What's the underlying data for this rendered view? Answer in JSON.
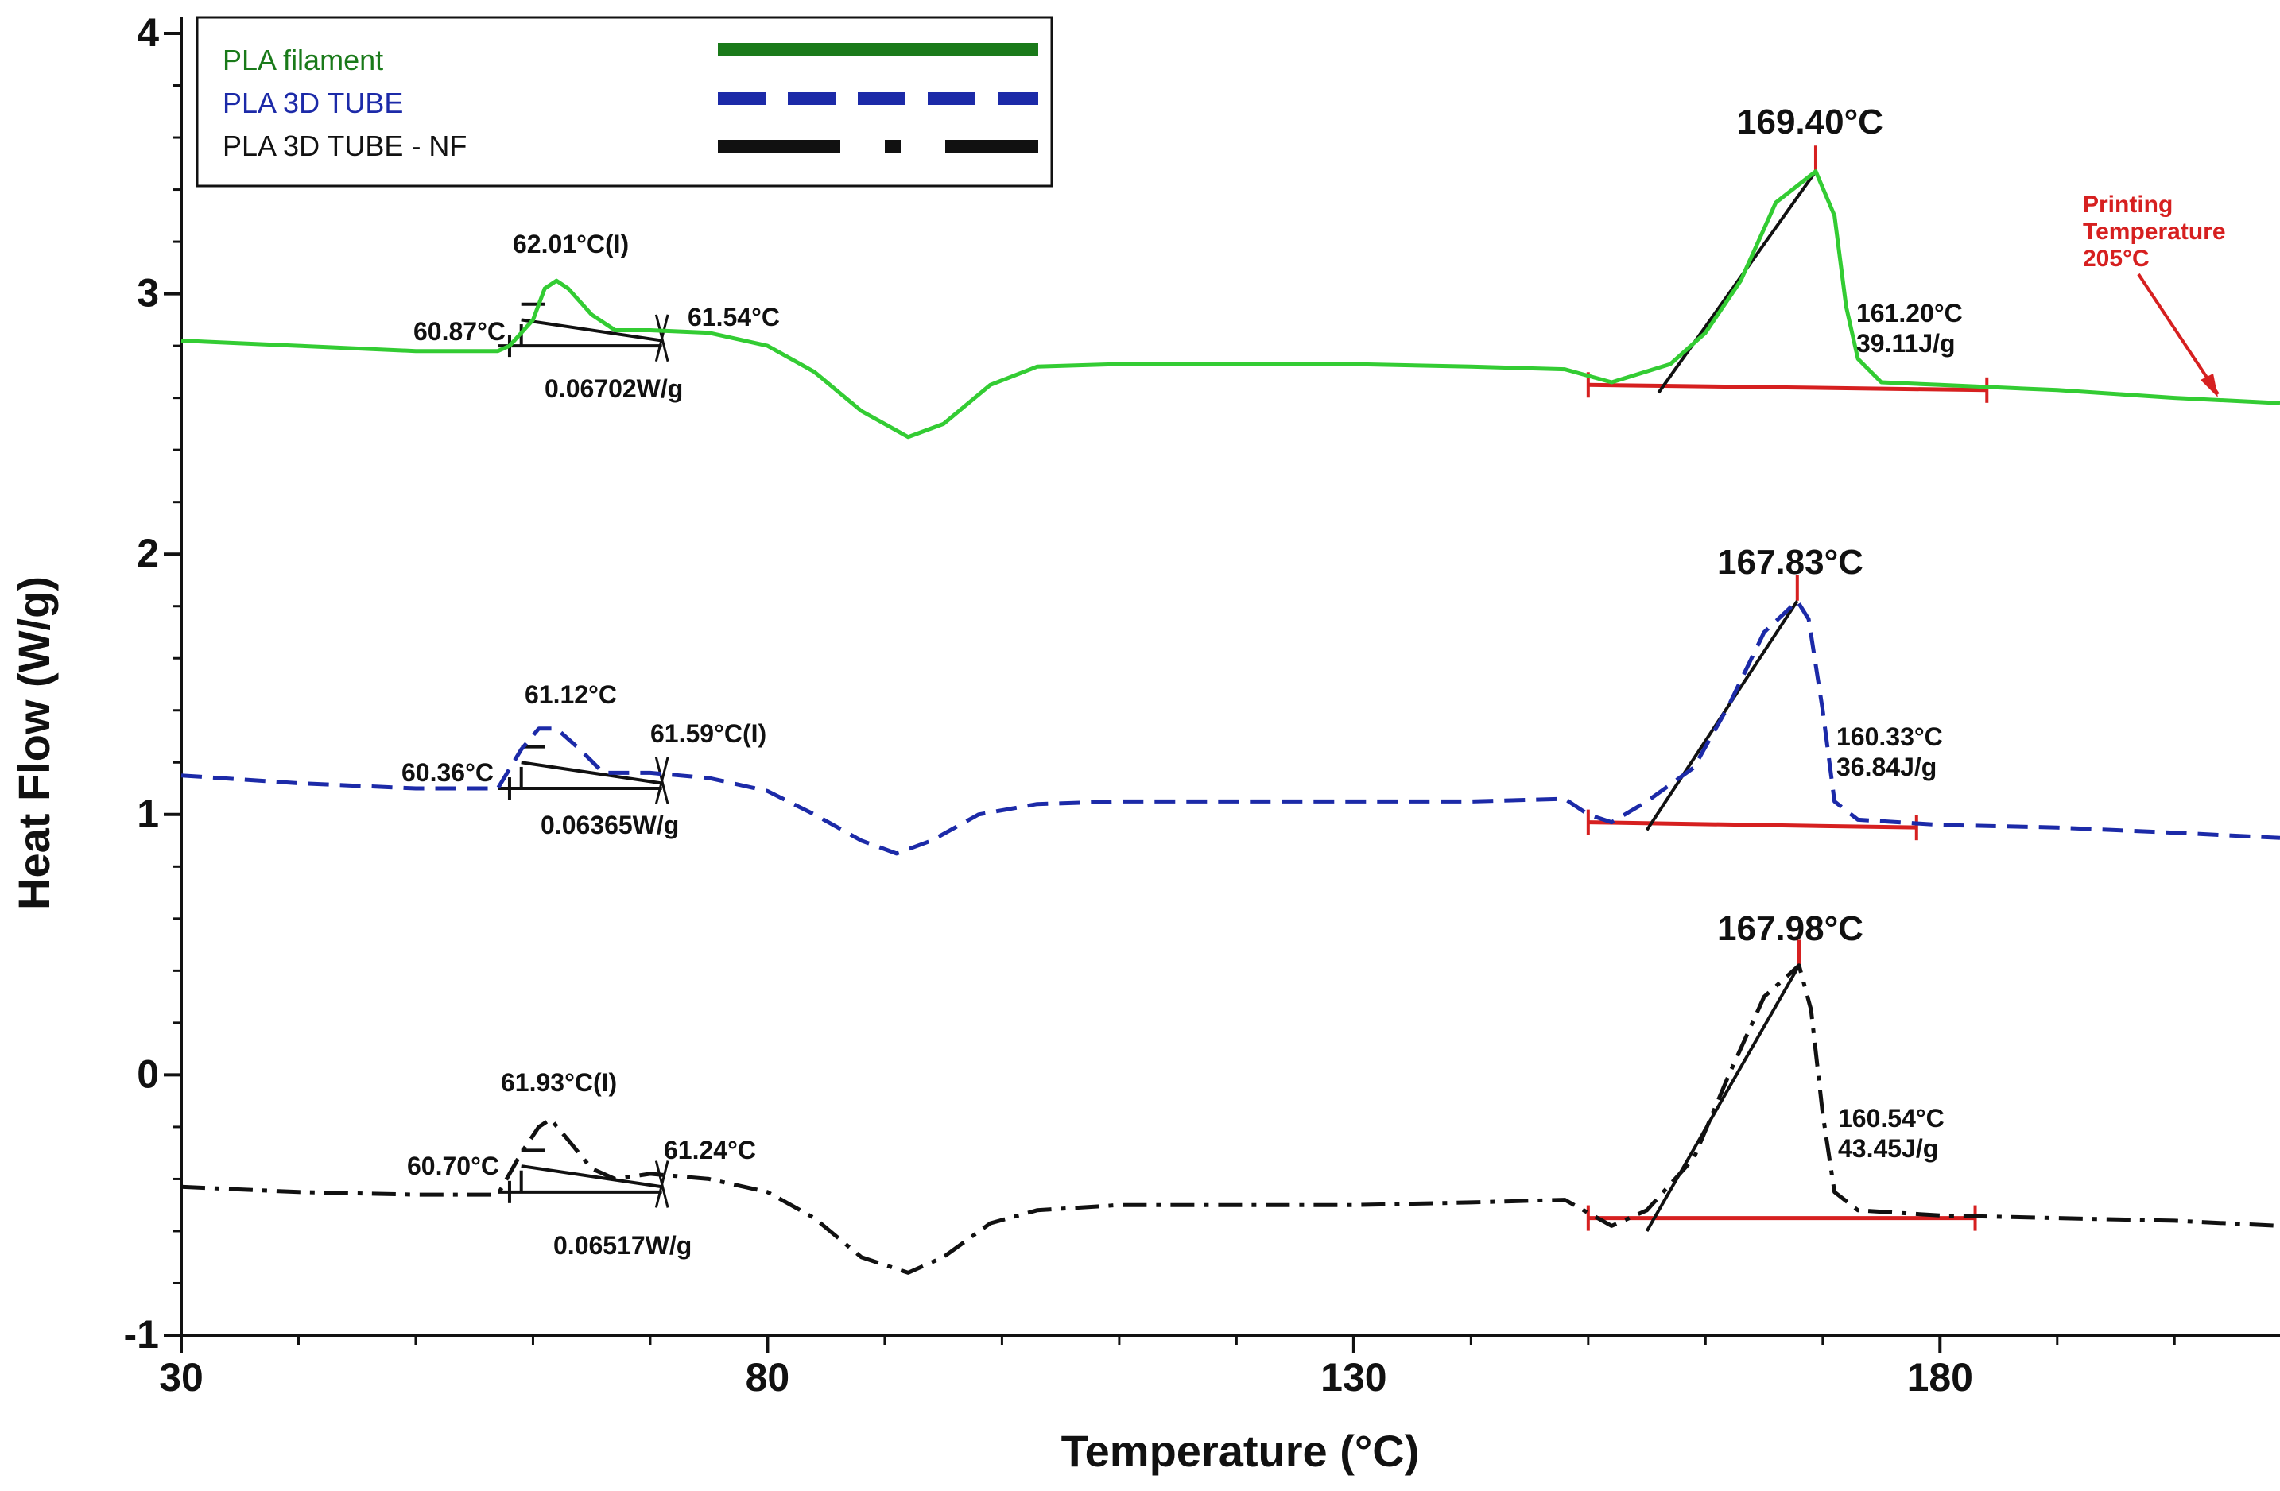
{
  "chart_data": {
    "type": "line",
    "title": "",
    "xlabel": "Temperature (°C)",
    "ylabel": "Heat Flow (W/g)",
    "xlim": [
      30,
      209
    ],
    "ylim": [
      -1,
      4
    ],
    "x_ticks": [
      30,
      80,
      130,
      180
    ],
    "y_ticks": [
      -1,
      0,
      1,
      2,
      3,
      4
    ],
    "legend": {
      "position": "top-left",
      "entries": [
        {
          "label": "PLA filament",
          "color": "#1a7a1a",
          "style": "solid"
        },
        {
          "label": "PLA 3D TUBE",
          "color": "#1c2aa8",
          "style": "dashed"
        },
        {
          "label": "PLA 3D TUBE - NF",
          "color": "#000000",
          "style": "dash-dot"
        }
      ]
    },
    "series": [
      {
        "name": "PLA filament",
        "color": "#33cc33",
        "style": "solid",
        "points": [
          [
            30,
            2.82
          ],
          [
            40,
            2.8
          ],
          [
            50,
            2.78
          ],
          [
            57,
            2.78
          ],
          [
            58,
            2.8
          ],
          [
            60,
            2.9
          ],
          [
            61,
            3.02
          ],
          [
            62,
            3.05
          ],
          [
            63,
            3.02
          ],
          [
            65,
            2.92
          ],
          [
            67,
            2.86
          ],
          [
            70,
            2.86
          ],
          [
            75,
            2.85
          ],
          [
            80,
            2.8
          ],
          [
            84,
            2.7
          ],
          [
            88,
            2.55
          ],
          [
            92,
            2.45
          ],
          [
            95,
            2.5
          ],
          [
            99,
            2.65
          ],
          [
            103,
            2.72
          ],
          [
            110,
            2.73
          ],
          [
            120,
            2.73
          ],
          [
            130,
            2.73
          ],
          [
            140,
            2.72
          ],
          [
            148,
            2.71
          ],
          [
            152,
            2.66
          ],
          [
            157,
            2.73
          ],
          [
            160,
            2.85
          ],
          [
            163,
            3.05
          ],
          [
            166,
            3.35
          ],
          [
            169.4,
            3.47
          ],
          [
            171,
            3.3
          ],
          [
            172,
            2.95
          ],
          [
            173,
            2.75
          ],
          [
            175,
            2.66
          ],
          [
            180,
            2.65
          ],
          [
            190,
            2.63
          ],
          [
            200,
            2.6
          ],
          [
            209,
            2.58
          ]
        ]
      },
      {
        "name": "PLA 3D TUBE",
        "color": "#1c2aa8",
        "style": "dashed",
        "points": [
          [
            30,
            1.15
          ],
          [
            40,
            1.12
          ],
          [
            50,
            1.1
          ],
          [
            57,
            1.1
          ],
          [
            59,
            1.25
          ],
          [
            60.5,
            1.33
          ],
          [
            62,
            1.33
          ],
          [
            64,
            1.25
          ],
          [
            66,
            1.16
          ],
          [
            70,
            1.16
          ],
          [
            75,
            1.14
          ],
          [
            80,
            1.09
          ],
          [
            84,
            1.0
          ],
          [
            88,
            0.9
          ],
          [
            91,
            0.85
          ],
          [
            94,
            0.9
          ],
          [
            98,
            1.0
          ],
          [
            103,
            1.04
          ],
          [
            110,
            1.05
          ],
          [
            120,
            1.05
          ],
          [
            130,
            1.05
          ],
          [
            140,
            1.05
          ],
          [
            148,
            1.06
          ],
          [
            150,
            1.0
          ],
          [
            152,
            0.97
          ],
          [
            155,
            1.05
          ],
          [
            159,
            1.18
          ],
          [
            162,
            1.42
          ],
          [
            165,
            1.7
          ],
          [
            167.83,
            1.82
          ],
          [
            168.8,
            1.75
          ],
          [
            170,
            1.4
          ],
          [
            171,
            1.05
          ],
          [
            173,
            0.98
          ],
          [
            180,
            0.96
          ],
          [
            190,
            0.95
          ],
          [
            200,
            0.93
          ],
          [
            209,
            0.91
          ]
        ]
      },
      {
        "name": "PLA 3D TUBE - NF",
        "color": "#111111",
        "style": "dash-dot",
        "points": [
          [
            30,
            -0.43
          ],
          [
            40,
            -0.45
          ],
          [
            50,
            -0.46
          ],
          [
            57,
            -0.46
          ],
          [
            59,
            -0.3
          ],
          [
            60.5,
            -0.2
          ],
          [
            61.5,
            -0.17
          ],
          [
            63,
            -0.25
          ],
          [
            65,
            -0.36
          ],
          [
            67,
            -0.4
          ],
          [
            70,
            -0.38
          ],
          [
            75,
            -0.4
          ],
          [
            80,
            -0.45
          ],
          [
            84,
            -0.55
          ],
          [
            88,
            -0.7
          ],
          [
            92,
            -0.76
          ],
          [
            95,
            -0.7
          ],
          [
            99,
            -0.57
          ],
          [
            103,
            -0.52
          ],
          [
            110,
            -0.5
          ],
          [
            120,
            -0.5
          ],
          [
            130,
            -0.5
          ],
          [
            140,
            -0.49
          ],
          [
            148,
            -0.48
          ],
          [
            150,
            -0.53
          ],
          [
            152,
            -0.58
          ],
          [
            155,
            -0.52
          ],
          [
            159,
            -0.32
          ],
          [
            162,
            0.0
          ],
          [
            165,
            0.3
          ],
          [
            167.98,
            0.42
          ],
          [
            169,
            0.25
          ],
          [
            170,
            -0.15
          ],
          [
            171,
            -0.45
          ],
          [
            173,
            -0.52
          ],
          [
            180,
            -0.54
          ],
          [
            190,
            -0.55
          ],
          [
            200,
            -0.56
          ],
          [
            209,
            -0.58
          ]
        ]
      }
    ],
    "annotations": {
      "filament_glass": {
        "onset": "60.87°C",
        "mid": "62.01°C(I)",
        "end": "61.54°C",
        "delta": "0.06702W/g"
      },
      "tube_glass": {
        "onset": "60.36°C",
        "mid": "61.12°C",
        "end": "61.59°C(I)",
        "delta": "0.06365W/g"
      },
      "nf_glass": {
        "onset": "60.70°C",
        "mid": "61.93°C(I)",
        "end": "61.24°C",
        "delta": "0.06517W/g"
      },
      "filament_melt": {
        "peak": "169.40°C",
        "onset": "161.20°C",
        "enthalpy": "39.11J/g"
      },
      "tube_melt": {
        "peak": "167.83°C",
        "onset": "160.33°C",
        "enthalpy": "36.84J/g"
      },
      "nf_melt": {
        "peak": "167.98°C",
        "onset": "160.54°C",
        "enthalpy": "43.45J/g"
      },
      "printing_temp": [
        "Printing",
        "Temperature",
        "205°C"
      ]
    },
    "colors": {
      "baseline_red": "#d62020",
      "annotation_red": "#d62020",
      "axis": "#111111"
    }
  }
}
